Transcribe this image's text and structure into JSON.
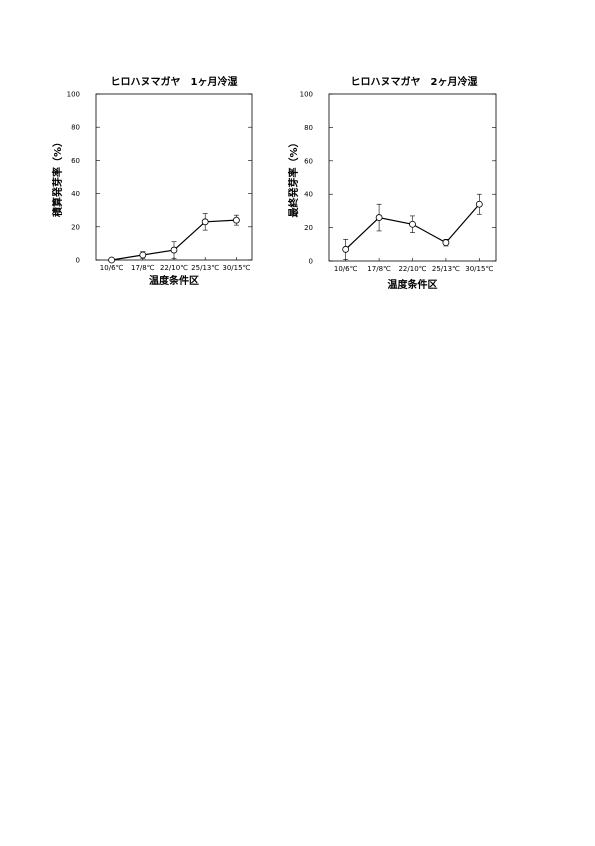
{
  "chart_data": [
    {
      "type": "line",
      "title": "ヒロハヌマガヤ　1ヶ月冷湿",
      "xlabel": "温度条件区",
      "ylabel": "積算発芽率（%）",
      "ylim": [
        0,
        100
      ],
      "yticks": [
        0,
        20,
        40,
        60,
        80,
        100
      ],
      "grid": false,
      "categories": [
        "10/6℃",
        "17/8℃",
        "22/10℃",
        "25/13℃",
        "30/15℃"
      ],
      "series": [
        {
          "values": [
            0,
            3,
            6,
            23,
            24
          ],
          "errors": [
            0,
            2,
            5,
            5,
            3
          ]
        }
      ]
    },
    {
      "type": "line",
      "title": "ヒロハヌマガヤ　2ヶ月冷湿",
      "xlabel": "温度条件区",
      "ylabel": "最終発芽率（%）",
      "ylim": [
        0,
        100
      ],
      "yticks": [
        0,
        20,
        40,
        60,
        80,
        100
      ],
      "grid": false,
      "categories": [
        "10/6℃",
        "17/8℃",
        "22/10℃",
        "25/13℃",
        "30/15℃"
      ],
      "series": [
        {
          "values": [
            7,
            26,
            22,
            11,
            34
          ],
          "errors": [
            6,
            8,
            5,
            2,
            6
          ]
        }
      ]
    }
  ]
}
